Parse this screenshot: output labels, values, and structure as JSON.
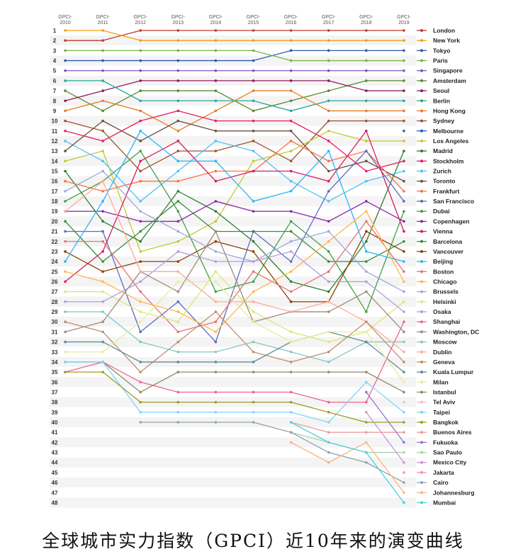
{
  "caption": "全球城市实力指数（GPCI）近10年来的演变曲线",
  "chart_data": {
    "type": "line",
    "subtype": "bump",
    "x": [
      "GPCI-2010",
      "GPCI-2011",
      "GPCI-2012",
      "GPCI-2013",
      "GPCI-2014",
      "GPCI-2015",
      "GPCI-2016",
      "GPCI-2017",
      "GPCI-2018",
      "GPCI-2019"
    ],
    "y_ticks": [
      1,
      2,
      3,
      4,
      5,
      6,
      7,
      8,
      9,
      10,
      11,
      12,
      13,
      14,
      15,
      16,
      17,
      18,
      19,
      20,
      21,
      22,
      23,
      24,
      25,
      26,
      27,
      28,
      29,
      30,
      31,
      32,
      33,
      34,
      35,
      36,
      37,
      38,
      39,
      40,
      41,
      42,
      43,
      44,
      45,
      46,
      47,
      48
    ],
    "ylim": [
      1,
      48
    ],
    "y_inverted": true,
    "legend": "right",
    "series": [
      {
        "name": "London",
        "color": "#c0392b",
        "values": [
          2,
          2,
          1,
          1,
          1,
          1,
          1,
          1,
          1,
          1
        ]
      },
      {
        "name": "New York",
        "color": "#f39c12",
        "values": [
          1,
          1,
          2,
          2,
          2,
          2,
          2,
          2,
          2,
          2
        ]
      },
      {
        "name": "Tokyo",
        "color": "#2e5aa8",
        "values": [
          4,
          4,
          4,
          4,
          4,
          4,
          3,
          3,
          3,
          3
        ]
      },
      {
        "name": "Paris",
        "color": "#7cb342",
        "values": [
          3,
          3,
          3,
          3,
          3,
          3,
          4,
          4,
          4,
          4
        ]
      },
      {
        "name": "Singapore",
        "color": "#7e57c2",
        "values": [
          5,
          5,
          5,
          5,
          5,
          5,
          5,
          5,
          5,
          5
        ]
      },
      {
        "name": "Amsterdam",
        "color": "#558b2f",
        "values": [
          7,
          9,
          7,
          7,
          7,
          9,
          8,
          7,
          6,
          6
        ]
      },
      {
        "name": "Seoul",
        "color": "#8e1b5e",
        "values": [
          8,
          7,
          6,
          6,
          6,
          6,
          6,
          6,
          7,
          7
        ]
      },
      {
        "name": "Berlin",
        "color": "#26a69a",
        "values": [
          6,
          6,
          8,
          8,
          8,
          8,
          9,
          8,
          8,
          8
        ]
      },
      {
        "name": "Hong Kong",
        "color": "#e67e22",
        "values": [
          9,
          8,
          9,
          11,
          9,
          7,
          7,
          9,
          9,
          9
        ]
      },
      {
        "name": "Sydney",
        "color": "#a0522d",
        "values": [
          10,
          11,
          15,
          13,
          13,
          12,
          14,
          10,
          10,
          10
        ]
      },
      {
        "name": "Melbourne",
        "color": "#1565c0",
        "values": [
          null,
          null,
          null,
          null,
          null,
          null,
          null,
          null,
          null,
          11
        ]
      },
      {
        "name": "Los Angeles",
        "color": "#c0ca33",
        "values": [
          14,
          13,
          23,
          22,
          20,
          14,
          13,
          11,
          12,
          12
        ]
      },
      {
        "name": "Madrid",
        "color": "#2e7d32",
        "values": [
          15,
          20,
          22,
          17,
          19,
          22,
          26,
          27,
          22,
          13
        ]
      },
      {
        "name": "Stockholm",
        "color": "#e91e63",
        "values": [
          11,
          12,
          10,
          9,
          10,
          10,
          10,
          12,
          15,
          14
        ]
      },
      {
        "name": "Zurich",
        "color": "#4fc3f7",
        "values": [
          12,
          14,
          18,
          15,
          12,
          13,
          16,
          18,
          16,
          15
        ]
      },
      {
        "name": "Toronto",
        "color": "#6d4c41",
        "values": [
          13,
          10,
          12,
          10,
          11,
          11,
          11,
          15,
          14,
          16
        ]
      },
      {
        "name": "Frankfurt",
        "color": "#ff7043",
        "values": [
          16,
          17,
          16,
          16,
          15,
          15,
          12,
          14,
          13,
          17
        ]
      },
      {
        "name": "San Francisco",
        "color": "#5c6bc0",
        "values": [
          21,
          21,
          31,
          28,
          32,
          21,
          24,
          17,
          13,
          18
        ]
      },
      {
        "name": "Dubai",
        "color": "#43a047",
        "values": [
          18,
          16,
          13,
          19,
          27,
          26,
          20,
          23,
          29,
          19
        ]
      },
      {
        "name": "Copenhagen",
        "color": "#8e24aa",
        "values": [
          19,
          19,
          20,
          20,
          18,
          19,
          19,
          20,
          18,
          20
        ]
      },
      {
        "name": "Vienna",
        "color": "#d81b60",
        "values": [
          26,
          23,
          14,
          12,
          16,
          15,
          15,
          16,
          11,
          21
        ]
      },
      {
        "name": "Barcelona",
        "color": "#388e3c",
        "values": [
          20,
          24,
          21,
          18,
          21,
          21,
          21,
          24,
          24,
          22
        ]
      },
      {
        "name": "Vancouver",
        "color": "#8d4004",
        "values": [
          23,
          25,
          24,
          24,
          22,
          23,
          28,
          28,
          21,
          23
        ]
      },
      {
        "name": "Beijing",
        "color": "#29b6f6",
        "values": [
          24,
          18,
          11,
          14,
          14,
          18,
          17,
          13,
          23,
          24
        ]
      },
      {
        "name": "Boston",
        "color": "#e57373",
        "values": [
          22,
          22,
          27,
          31,
          30,
          25,
          27,
          25,
          20,
          25
        ]
      },
      {
        "name": "Chicago",
        "color": "#ffb74d",
        "values": [
          25,
          26,
          28,
          29,
          31,
          27,
          25,
          22,
          19,
          26
        ]
      },
      {
        "name": "Brussels",
        "color": "#9fa8da",
        "values": [
          17,
          15,
          19,
          21,
          23,
          24,
          22,
          21,
          25,
          27
        ]
      },
      {
        "name": "Helsinki",
        "color": "#dce775",
        "values": [
          27,
          27,
          29,
          30,
          25,
          29,
          31,
          32,
          31,
          28
        ]
      },
      {
        "name": "Osaka",
        "color": "#b39ddb",
        "values": [
          28,
          28,
          26,
          23,
          24,
          24,
          23,
          26,
          26,
          29
        ]
      },
      {
        "name": "Shanghai",
        "color": "#f06292",
        "values": [
          35,
          34,
          36,
          37,
          37,
          37,
          37,
          38,
          38,
          30
        ]
      },
      {
        "name": "Washington, DC",
        "color": "#a1887f",
        "values": [
          31,
          30,
          25,
          27,
          21,
          30,
          29,
          29,
          27,
          31
        ]
      },
      {
        "name": "Moscow",
        "color": "#80cbc4",
        "values": [
          29,
          29,
          32,
          33,
          33,
          32,
          33,
          34,
          32,
          32
        ]
      },
      {
        "name": "Dublin",
        "color": "#ffab91",
        "values": [
          19,
          16,
          25,
          25,
          28,
          28,
          29,
          28,
          30,
          33
        ]
      },
      {
        "name": "Geneva",
        "color": "#bc8f6f",
        "values": [
          30,
          31,
          35,
          32,
          29,
          33,
          34,
          33,
          30,
          34
        ]
      },
      {
        "name": "Kuala Lumpur",
        "color": "#5e8c9a",
        "values": [
          32,
          32,
          34,
          34,
          34,
          34,
          32,
          31,
          32,
          35
        ]
      },
      {
        "name": "Milan",
        "color": "#e6ee9c",
        "values": [
          33,
          33,
          30,
          26,
          26,
          30,
          32,
          31,
          31,
          36
        ]
      },
      {
        "name": "Istanbul",
        "color": "#8d8d6b",
        "values": [
          34,
          34,
          37,
          35,
          35,
          35,
          35,
          35,
          35,
          37
        ]
      },
      {
        "name": "Tel Aviv",
        "color": "#f8bbd0",
        "values": [
          null,
          null,
          null,
          null,
          null,
          null,
          null,
          null,
          null,
          38
        ]
      },
      {
        "name": "Taipei",
        "color": "#81d4fa",
        "values": [
          34,
          34,
          39,
          39,
          39,
          39,
          39,
          40,
          36,
          39
        ]
      },
      {
        "name": "Bangkok",
        "color": "#9e9d24",
        "values": [
          35,
          35,
          38,
          38,
          38,
          38,
          38,
          39,
          40,
          40
        ]
      },
      {
        "name": "Buenos Aires",
        "color": "#ef9a9a",
        "values": [
          null,
          null,
          null,
          null,
          null,
          null,
          40,
          41,
          41,
          41
        ]
      },
      {
        "name": "Fukuoka",
        "color": "#9575cd",
        "values": [
          null,
          null,
          null,
          null,
          null,
          null,
          null,
          null,
          37,
          42
        ]
      },
      {
        "name": "Sao Paulo",
        "color": "#a5d6a7",
        "values": [
          null,
          null,
          null,
          null,
          null,
          null,
          41,
          42,
          43,
          43
        ]
      },
      {
        "name": "Mexico City",
        "color": "#ce93d8",
        "values": [
          null,
          null,
          null,
          null,
          null,
          null,
          null,
          null,
          39,
          44
        ]
      },
      {
        "name": "Jakarta",
        "color": "#f48fb1",
        "values": [
          null,
          null,
          null,
          null,
          null,
          null,
          null,
          null,
          null,
          45
        ]
      },
      {
        "name": "Cairo",
        "color": "#90a4ae",
        "values": [
          null,
          null,
          40,
          40,
          40,
          40,
          41,
          43,
          44,
          46
        ]
      },
      {
        "name": "Johannesburg",
        "color": "#ffb380",
        "values": [
          null,
          null,
          null,
          null,
          null,
          null,
          42,
          44,
          42,
          47
        ]
      },
      {
        "name": "Mumbai",
        "color": "#4dd0e1",
        "values": [
          null,
          null,
          null,
          null,
          null,
          null,
          40,
          42,
          43,
          48
        ]
      }
    ]
  }
}
